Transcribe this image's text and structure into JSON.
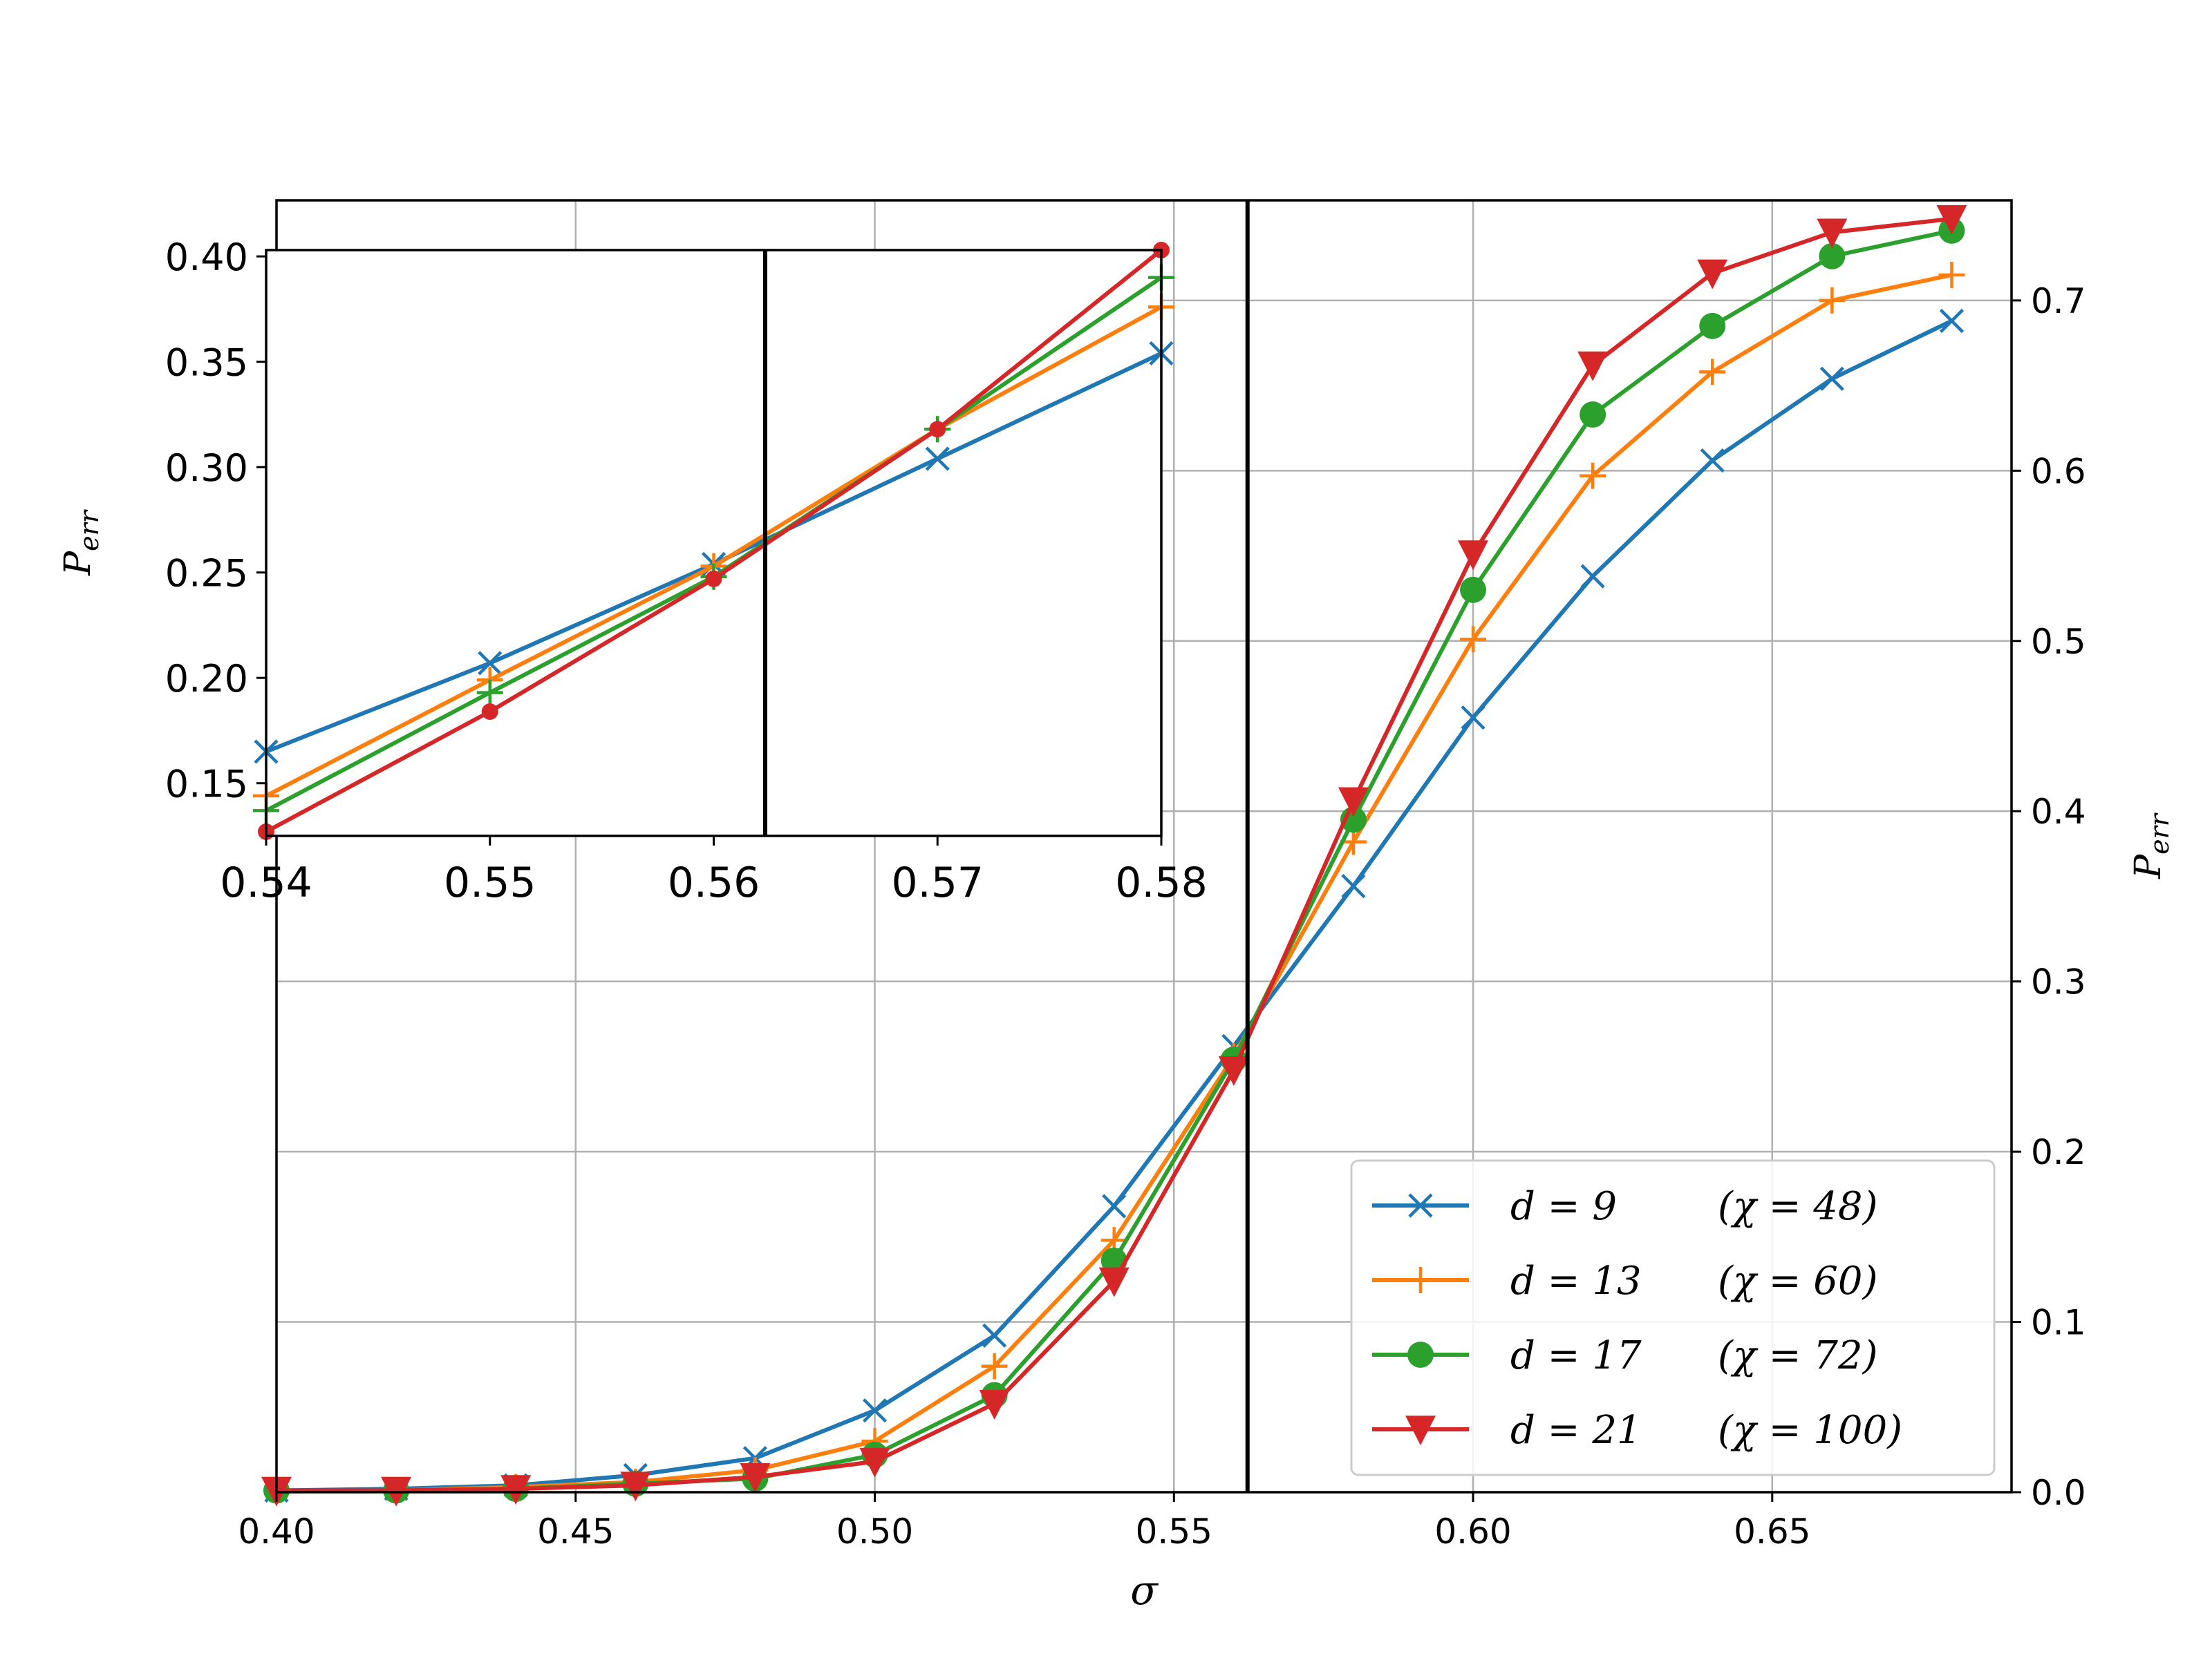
{
  "chart_data": [
    {
      "type": "line",
      "xlabel": "σ",
      "ylabel": "P_err",
      "ylabel_main": "P",
      "ylabel_sub": "err",
      "xlim": [
        0.4,
        0.69
      ],
      "ylim": [
        0.0,
        0.7588
      ],
      "xticks": [
        0.4,
        0.45,
        0.5,
        0.55,
        0.6,
        0.65
      ],
      "xtick_labels": [
        "0.40",
        "0.45",
        "0.50",
        "0.55",
        "0.60",
        "0.65"
      ],
      "yticks": [
        0.0,
        0.1,
        0.2,
        0.3,
        0.4,
        0.5,
        0.6,
        0.7
      ],
      "ytick_labels": [
        "0.0",
        "0.1",
        "0.2",
        "0.3",
        "0.4",
        "0.5",
        "0.6",
        "0.7"
      ],
      "y_axis_side": "right",
      "grid": true,
      "legend_position": "lower right",
      "threshold_line_x": 0.5623,
      "series": [
        {
          "name": "d = 9",
          "legend_main": "d = 9",
          "legend_chi": "(χ = 48)",
          "color": "#1f77b4",
          "marker": "x",
          "x": [
            0.4,
            0.42,
            0.44,
            0.46,
            0.48,
            0.5,
            0.52,
            0.54,
            0.56,
            0.58,
            0.6,
            0.62,
            0.64,
            0.66,
            0.68
          ],
          "y": [
            0.001,
            0.002,
            0.004,
            0.01,
            0.02,
            0.048,
            0.092,
            0.168,
            0.262,
            0.356,
            0.455,
            0.538,
            0.606,
            0.654,
            0.688
          ]
        },
        {
          "name": "d = 13",
          "legend_main": "d = 13",
          "legend_chi": "(χ = 60)",
          "color": "#ff7f0e",
          "marker": "+",
          "x": [
            0.4,
            0.42,
            0.44,
            0.46,
            0.48,
            0.5,
            0.52,
            0.54,
            0.56,
            0.58,
            0.6,
            0.62,
            0.64,
            0.66,
            0.68
          ],
          "y": [
            0.001,
            0.001,
            0.003,
            0.006,
            0.013,
            0.03,
            0.074,
            0.148,
            0.256,
            0.382,
            0.501,
            0.597,
            0.658,
            0.7,
            0.715
          ]
        },
        {
          "name": "d = 17",
          "legend_main": "d = 17",
          "legend_chi": "(χ = 72)",
          "color": "#2ca02c",
          "marker": "o",
          "x": [
            0.4,
            0.42,
            0.44,
            0.46,
            0.48,
            0.5,
            0.52,
            0.54,
            0.56,
            0.58,
            0.6,
            0.62,
            0.64,
            0.66,
            0.68
          ],
          "y": [
            0.001,
            0.001,
            0.002,
            0.005,
            0.008,
            0.022,
            0.057,
            0.136,
            0.254,
            0.395,
            0.53,
            0.633,
            0.685,
            0.726,
            0.741
          ]
        },
        {
          "name": "d = 21",
          "legend_main": "d = 21",
          "legend_chi": "(χ = 100)",
          "color": "#d62728",
          "marker": "v",
          "x": [
            0.4,
            0.42,
            0.44,
            0.46,
            0.48,
            0.5,
            0.52,
            0.54,
            0.56,
            0.58,
            0.6,
            0.62,
            0.64,
            0.66,
            0.68
          ],
          "y": [
            0.001,
            0.001,
            0.002,
            0.004,
            0.009,
            0.018,
            0.052,
            0.124,
            0.248,
            0.406,
            0.551,
            0.662,
            0.716,
            0.74,
            0.748
          ]
        }
      ]
    },
    {
      "type": "line",
      "role": "inset",
      "ylabel": "P_err",
      "ylabel_main": "P",
      "ylabel_sub": "err",
      "xlim": [
        0.54,
        0.58
      ],
      "ylim": [
        0.125,
        0.403
      ],
      "xticks": [
        0.54,
        0.55,
        0.56,
        0.57,
        0.58
      ],
      "xtick_labels": [
        "0.54",
        "0.55",
        "0.56",
        "0.57",
        "0.58"
      ],
      "yticks": [
        0.15,
        0.2,
        0.25,
        0.3,
        0.35,
        0.4
      ],
      "ytick_labels": [
        "0.15",
        "0.20",
        "0.25",
        "0.30",
        "0.35",
        "0.40"
      ],
      "grid": false,
      "threshold_line_x": 0.5623,
      "series": [
        {
          "color": "#1f77b4",
          "marker": "x",
          "x": [
            0.54,
            0.55,
            0.56,
            0.57,
            0.58
          ],
          "y": [
            0.165,
            0.207,
            0.254,
            0.304,
            0.354
          ]
        },
        {
          "color": "#ff7f0e",
          "marker": "+",
          "x": [
            0.54,
            0.55,
            0.56,
            0.57,
            0.58
          ],
          "y": [
            0.144,
            0.199,
            0.253,
            0.318,
            0.376
          ]
        },
        {
          "color": "#2ca02c",
          "marker": "+",
          "x": [
            0.54,
            0.55,
            0.56,
            0.57,
            0.58
          ],
          "y": [
            0.137,
            0.193,
            0.248,
            0.318,
            0.39
          ]
        },
        {
          "color": "#d62728",
          "marker": "o-small",
          "x": [
            0.54,
            0.55,
            0.56,
            0.57,
            0.58
          ],
          "y": [
            0.127,
            0.184,
            0.247,
            0.318,
            0.403
          ]
        }
      ]
    }
  ]
}
